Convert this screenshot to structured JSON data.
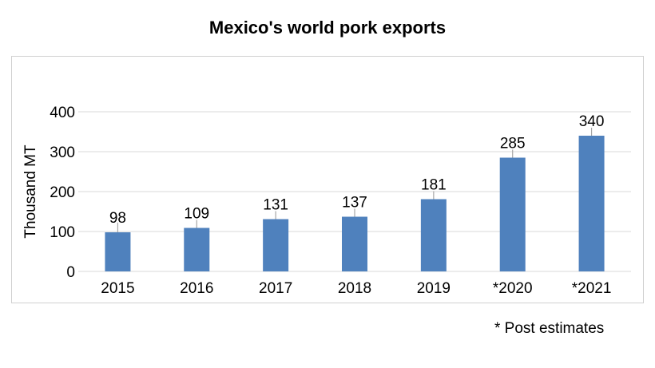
{
  "chart_data": {
    "type": "bar",
    "title": "Mexico's world pork exports",
    "ylabel": "Thousand MT",
    "xlabel": "",
    "categories": [
      "2015",
      "2016",
      "2017",
      "2018",
      "2019",
      "*2020",
      "*2021"
    ],
    "values": [
      98,
      109,
      131,
      137,
      181,
      285,
      340
    ],
    "data_labels": [
      "98",
      "109",
      "131",
      "137",
      "181",
      "285",
      "340"
    ],
    "ylim": [
      0,
      400
    ],
    "yticks": [
      0,
      100,
      200,
      300,
      400
    ],
    "ytick_labels": [
      "0",
      "100",
      "200",
      "300",
      "400"
    ],
    "grid": true,
    "error_bars": true,
    "bar_color": "#4f81bd",
    "grid_color": "#d9d9d9",
    "errorbar_color": "#a6a6a6"
  },
  "footnote": "* Post estimates"
}
